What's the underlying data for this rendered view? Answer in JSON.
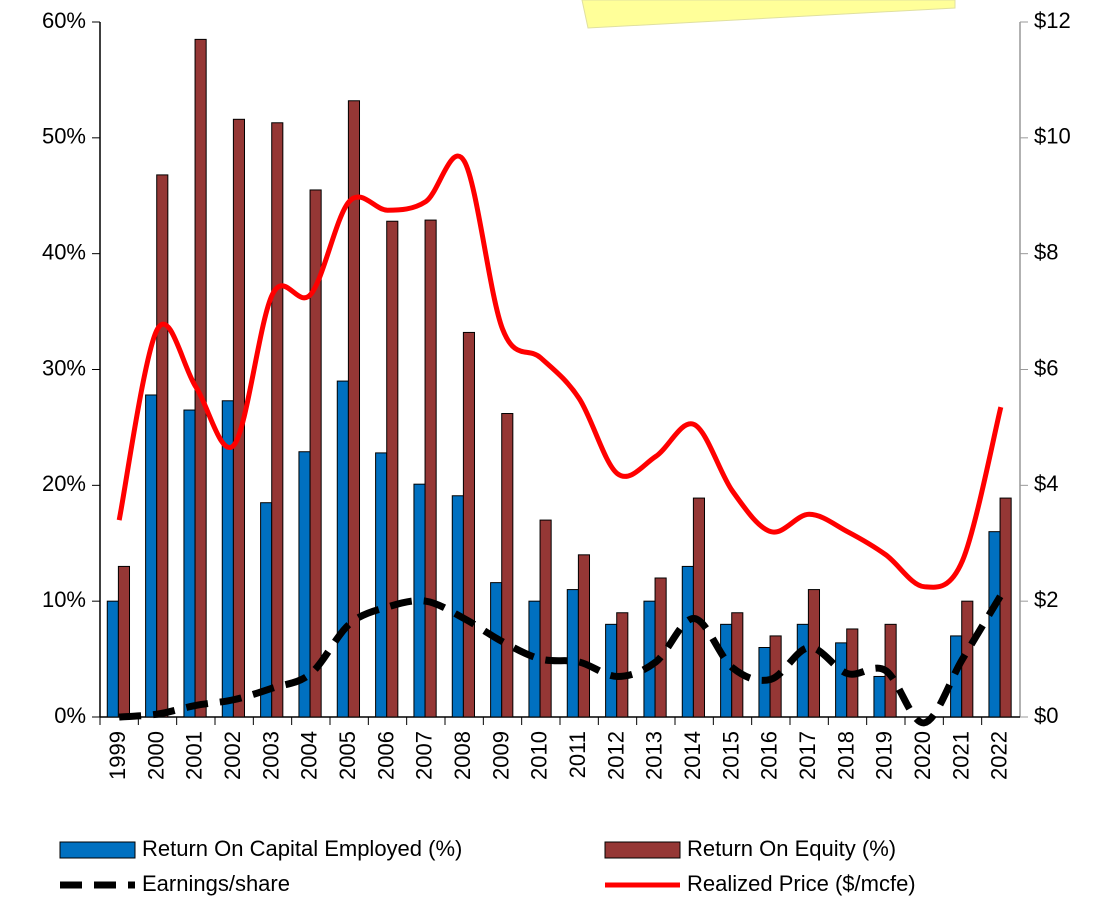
{
  "chart_data": {
    "type": "bar",
    "categories": [
      "1999",
      "2000",
      "2001",
      "2002",
      "2003",
      "2004",
      "2005",
      "2006",
      "2007",
      "2008",
      "2009",
      "2010",
      "2011",
      "2012",
      "2013",
      "2014",
      "2015",
      "2016",
      "2017",
      "2018",
      "2019",
      "2020",
      "2021",
      "2022"
    ],
    "series": [
      {
        "name": "Return On Capital Employed (%)",
        "type": "bar",
        "color": "#0070c0",
        "values": [
          10,
          27.8,
          26.5,
          27.3,
          18.5,
          22.9,
          29,
          22.8,
          20.1,
          19.1,
          11.6,
          10,
          11,
          8,
          10,
          13,
          8,
          6,
          8,
          6.4,
          3.5,
          null,
          7,
          16
        ]
      },
      {
        "name": "Return On Equity (%)",
        "type": "bar",
        "color": "#953735",
        "values": [
          13,
          46.8,
          58.5,
          51.6,
          51.3,
          45.5,
          53.2,
          42.8,
          42.9,
          33.2,
          26.2,
          17,
          14,
          9,
          12,
          18.9,
          9,
          7,
          11,
          7.6,
          8,
          null,
          10,
          18.9
        ]
      },
      {
        "name": "Earnings/share",
        "type": "dashed-line",
        "color": "#000000",
        "axis": "y2",
        "values": [
          0,
          0.05,
          0.2,
          0.3,
          0.5,
          0.75,
          1.6,
          1.9,
          2.0,
          1.7,
          1.3,
          1.0,
          0.95,
          0.7,
          0.95,
          1.7,
          0.85,
          0.65,
          1.2,
          0.75,
          0.8,
          -0.1,
          1.0,
          2.1
        ]
      },
      {
        "name": "Realized Price ($/mcfe)",
        "type": "line",
        "color": "#ff0000",
        "axis": "y2",
        "values": [
          3.4,
          6.7,
          5.7,
          4.7,
          7.3,
          7.3,
          8.9,
          8.75,
          8.9,
          9.6,
          6.7,
          6.2,
          5.5,
          4.2,
          4.5,
          5.05,
          3.9,
          3.2,
          3.5,
          3.2,
          2.8,
          2.25,
          2.7,
          5.35
        ]
      }
    ],
    "ylim": [
      0,
      60
    ],
    "yticks": [
      {
        "value": 0,
        "label": "0%"
      },
      {
        "value": 10,
        "label": "10%"
      },
      {
        "value": 20,
        "label": "20%"
      },
      {
        "value": 30,
        "label": "30%"
      },
      {
        "value": 40,
        "label": "40%"
      },
      {
        "value": 50,
        "label": "50%"
      },
      {
        "value": 60,
        "label": "60%"
      }
    ],
    "y2lim": [
      0,
      12
    ],
    "y2ticks": [
      {
        "value": 0,
        "label": "$0"
      },
      {
        "value": 2,
        "label": "$2"
      },
      {
        "value": 4,
        "label": "$4"
      },
      {
        "value": 6,
        "label": "$6"
      },
      {
        "value": 8,
        "label": "$8"
      },
      {
        "value": 10,
        "label": "$10"
      },
      {
        "value": 12,
        "label": "$12"
      }
    ],
    "grid": false,
    "legend": "bottom"
  }
}
